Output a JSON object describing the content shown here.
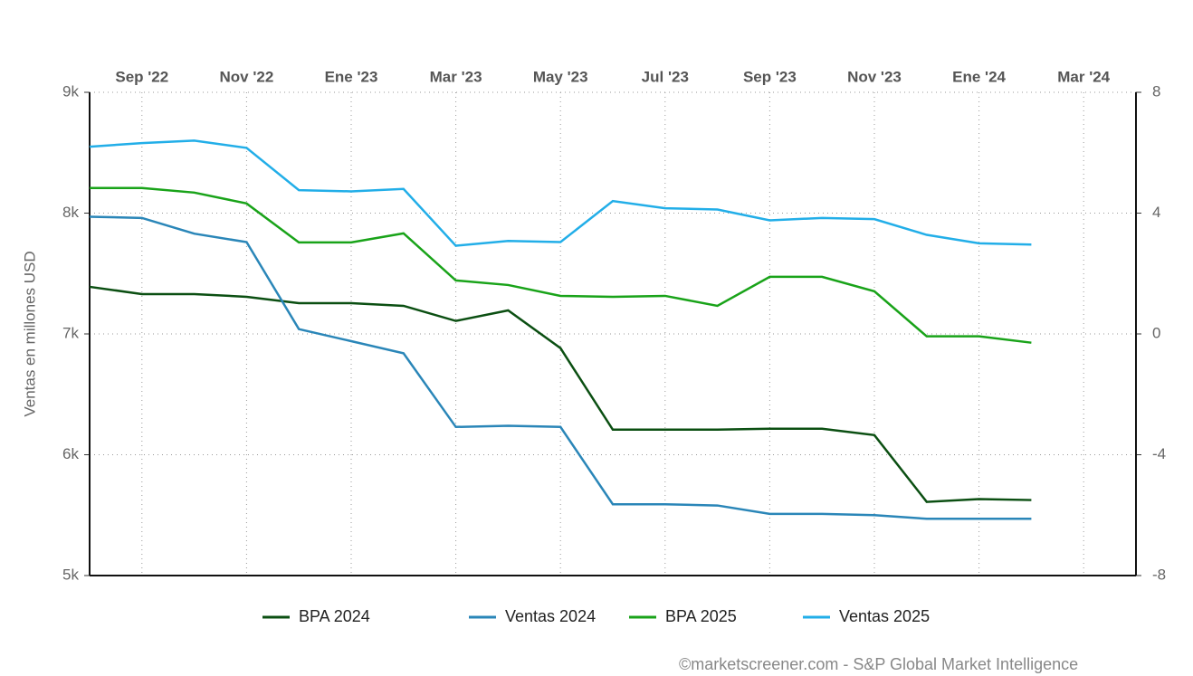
{
  "chart_data": {
    "type": "line",
    "y_label": "Ventas en millones USD",
    "credit": "©marketscreener.com - S&P Global Market Intelligence",
    "x": [
      "2022-08",
      "2022-09",
      "2022-10",
      "2022-11",
      "2022-12",
      "2023-01",
      "2023-02",
      "2023-03",
      "2023-04",
      "2023-05",
      "2023-06",
      "2023-07",
      "2023-08",
      "2023-09",
      "2023-10",
      "2023-11",
      "2023-12",
      "2024-01",
      "2024-02"
    ],
    "xlim": [
      "2022-08",
      "2024-04"
    ],
    "xticks": [
      {
        "value": "2022-09",
        "label": "Sep '22"
      },
      {
        "value": "2022-11",
        "label": "Nov '22"
      },
      {
        "value": "2023-01",
        "label": "Ene '23"
      },
      {
        "value": "2023-03",
        "label": "Mar '23"
      },
      {
        "value": "2023-05",
        "label": "May '23"
      },
      {
        "value": "2023-07",
        "label": "Jul '23"
      },
      {
        "value": "2023-09",
        "label": "Sep '23"
      },
      {
        "value": "2023-11",
        "label": "Nov '23"
      },
      {
        "value": "2024-01",
        "label": "Ene '24"
      },
      {
        "value": "2024-03",
        "label": "Mar '24"
      }
    ],
    "ylim": [
      5000,
      9000
    ],
    "yticks": [
      {
        "value": 5000,
        "label": "5k"
      },
      {
        "value": 6000,
        "label": "6k"
      },
      {
        "value": 7000,
        "label": "7k"
      },
      {
        "value": 8000,
        "label": "8k"
      },
      {
        "value": 9000,
        "label": "9k"
      }
    ],
    "y2lim": [
      -8,
      8
    ],
    "y2ticks": [
      -8,
      -4,
      0,
      4,
      8
    ],
    "grid": true,
    "legend": "bottom",
    "series": [
      {
        "name": "BPA 2024",
        "color": "#0b4f12",
        "axis": "y2",
        "values": [
          1.56,
          1.32,
          1.32,
          1.23,
          1.02,
          1.02,
          0.93,
          0.43,
          0.78,
          -0.47,
          -3.17,
          -3.17,
          -3.17,
          -3.14,
          -3.14,
          -3.35,
          -5.56,
          -5.47,
          -5.5
        ]
      },
      {
        "name": "Ventas 2024",
        "color": "#2a86b8",
        "values": [
          7970,
          7960,
          7830,
          7760,
          7040,
          6940,
          6840,
          6230,
          6240,
          6230,
          5590,
          5590,
          5580,
          5510,
          5510,
          5500,
          5470,
          5470,
          5470
        ]
      },
      {
        "name": "BPA 2025",
        "color": "#19a319",
        "axis": "y2",
        "values": [
          4.83,
          4.83,
          4.68,
          4.32,
          3.03,
          3.03,
          3.33,
          1.77,
          1.62,
          1.26,
          1.23,
          1.26,
          0.93,
          1.89,
          1.89,
          1.41,
          -0.08,
          -0.08,
          -0.29
        ]
      },
      {
        "name": "Ventas 2025",
        "color": "#22aee8",
        "values": [
          8550,
          8580,
          8600,
          8540,
          8190,
          8180,
          8200,
          7730,
          7770,
          7760,
          8100,
          8040,
          8030,
          7940,
          7960,
          7950,
          7820,
          7750,
          7740
        ]
      }
    ]
  }
}
